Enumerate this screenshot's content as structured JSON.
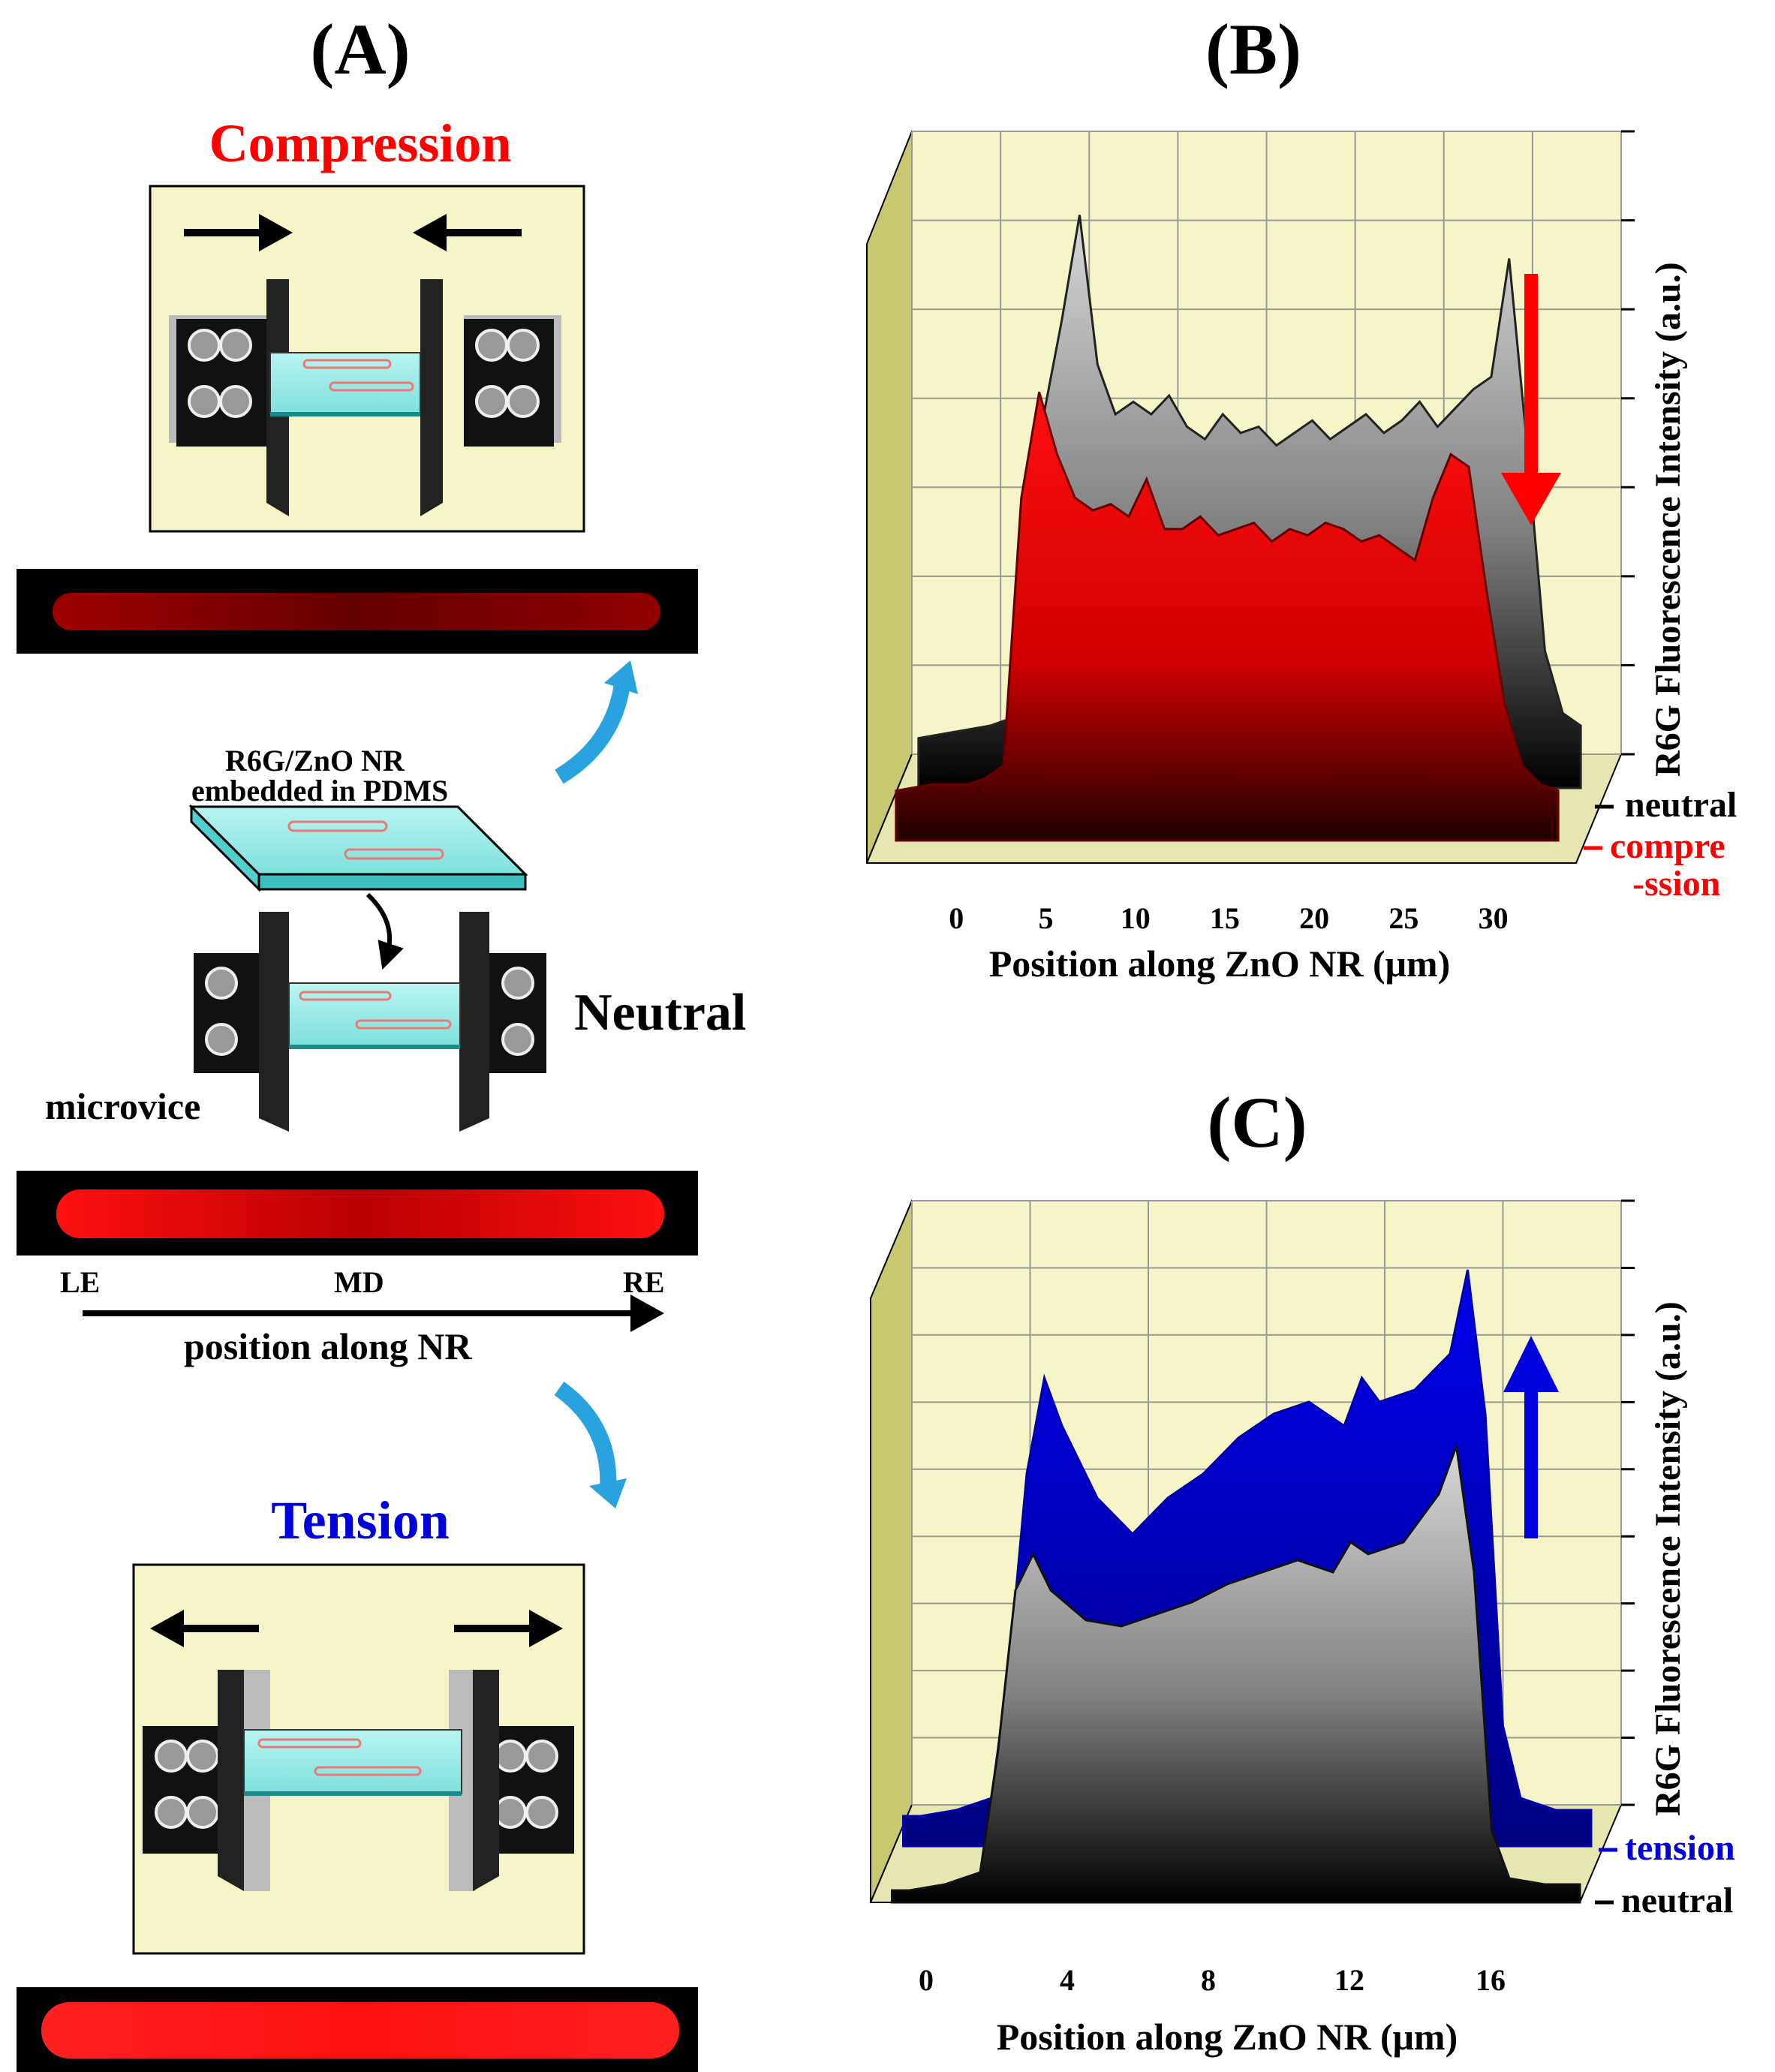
{
  "panels": {
    "a_label": "(A)",
    "b_label": "(B)",
    "c_label": "(C)"
  },
  "panel_a": {
    "compression_title": "Compression",
    "tension_title": "Tension",
    "neutral_label": "Neutral",
    "sample_label_line1": "R6G/ZnO NR",
    "sample_label_line2": "embedded in PDMS",
    "microvice_label": "microvice",
    "le_label": "LE",
    "md_label": "MD",
    "re_label": "RE",
    "position_label": "position along NR",
    "colors": {
      "compression": "#ff0000",
      "tension": "#0000dd",
      "box": "#f5f5c8",
      "curve_arrow": "#29a3e0"
    }
  },
  "chart_data": [
    {
      "type": "area",
      "panel": "(B)",
      "xlabel": "Position along ZnO NR (μm)",
      "ylabel": "R6G Fluorescence Intensity (a.u.)",
      "x_ticks": [
        "0",
        "5",
        "10",
        "15",
        "20",
        "25",
        "30"
      ],
      "xlim": [
        -5,
        34
      ],
      "series": [
        {
          "name": "neutral",
          "color": "#808080",
          "x": [
            -4,
            -2,
            0,
            1,
            2,
            3,
            4,
            5,
            6,
            7,
            8,
            9,
            10,
            11,
            12,
            13,
            14,
            15,
            16,
            17,
            18,
            19,
            20,
            21,
            22,
            23,
            24,
            25,
            26,
            27,
            28,
            29,
            30,
            31,
            32,
            33
          ],
          "y": [
            8,
            9,
            10,
            11,
            14,
            60,
            75,
            92,
            68,
            60,
            62,
            60,
            63,
            58,
            56,
            60,
            57,
            58,
            55,
            57,
            59,
            56,
            58,
            60,
            57,
            59,
            62,
            58,
            61,
            64,
            66,
            85,
            55,
            22,
            12,
            10
          ]
        },
        {
          "name": "compression",
          "color": "#ff0000",
          "x": [
            -4,
            -2,
            0,
            1,
            2,
            3,
            4,
            5,
            6,
            7,
            8,
            9,
            10,
            11,
            12,
            13,
            14,
            15,
            16,
            17,
            18,
            19,
            20,
            21,
            22,
            23,
            24,
            25,
            26,
            27,
            28,
            29,
            30,
            31,
            32,
            33
          ],
          "y": [
            8,
            9,
            9,
            10,
            12,
            55,
            72,
            62,
            55,
            53,
            54,
            52,
            58,
            50,
            50,
            52,
            49,
            50,
            51,
            48,
            50,
            49,
            51,
            50,
            48,
            49,
            47,
            45,
            55,
            62,
            60,
            40,
            22,
            12,
            9,
            8
          ]
        }
      ],
      "legend": [
        "neutral",
        "compre",
        "-ssion"
      ],
      "annotation": "downward red arrow"
    },
    {
      "type": "area",
      "panel": "(C)",
      "xlabel": "Position along ZnO NR (μm)",
      "ylabel": "R6G Fluorescence Intensity (a.u.)",
      "x_ticks": [
        "0",
        "4",
        "8",
        "12",
        "16"
      ],
      "xlim": [
        -2,
        18
      ],
      "series": [
        {
          "name": "tension",
          "color": "#0000dd",
          "x": [
            -1.5,
            -1,
            0,
            1,
            1.5,
            2,
            2.5,
            3,
            4,
            5,
            6,
            7,
            8,
            9,
            10,
            11,
            11.5,
            12,
            13,
            14,
            14.5,
            15,
            15.5,
            16,
            17,
            18
          ],
          "y": [
            5,
            5,
            6,
            8,
            30,
            62,
            78,
            70,
            58,
            52,
            58,
            62,
            68,
            72,
            74,
            70,
            78,
            74,
            76,
            82,
            96,
            72,
            20,
            8,
            6,
            6
          ]
        },
        {
          "name": "neutral",
          "color": "#808080",
          "x": [
            -1.5,
            -1,
            0,
            1,
            1.5,
            2,
            2.5,
            3,
            4,
            5,
            6,
            7,
            8,
            9,
            10,
            11,
            11.5,
            12,
            13,
            14,
            14.5,
            15,
            15.5,
            16,
            17,
            18
          ],
          "y": [
            2,
            2,
            3,
            5,
            25,
            52,
            58,
            52,
            47,
            46,
            48,
            50,
            53,
            55,
            57,
            55,
            60,
            58,
            60,
            68,
            76,
            55,
            12,
            4,
            3,
            3
          ]
        }
      ],
      "legend": [
        "tension",
        "neutral"
      ],
      "annotation": "upward blue arrow"
    }
  ]
}
